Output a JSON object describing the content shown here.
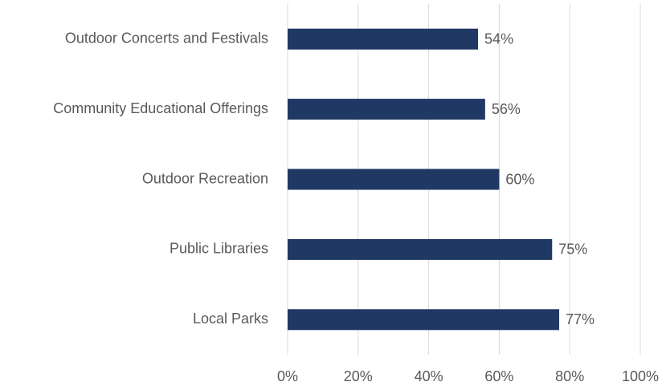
{
  "chart_data": {
    "type": "bar",
    "orientation": "horizontal",
    "categories": [
      "Outdoor Concerts and Festivals",
      "Community Educational Offerings",
      "Outdoor Recreation",
      "Public Libraries",
      "Local Parks"
    ],
    "values": [
      54,
      56,
      60,
      75,
      77
    ],
    "value_labels": [
      "54%",
      "56%",
      "60%",
      "75%",
      "77%"
    ],
    "color": "#203864",
    "xlim": [
      0,
      100
    ],
    "xticks": [
      {
        "value": 0,
        "label": "0%"
      },
      {
        "value": 20,
        "label": "20%"
      },
      {
        "value": 40,
        "label": "40%"
      },
      {
        "value": 60,
        "label": "60%"
      },
      {
        "value": 80,
        "label": "80%"
      },
      {
        "value": 100,
        "label": "100%"
      }
    ],
    "grid": true
  }
}
